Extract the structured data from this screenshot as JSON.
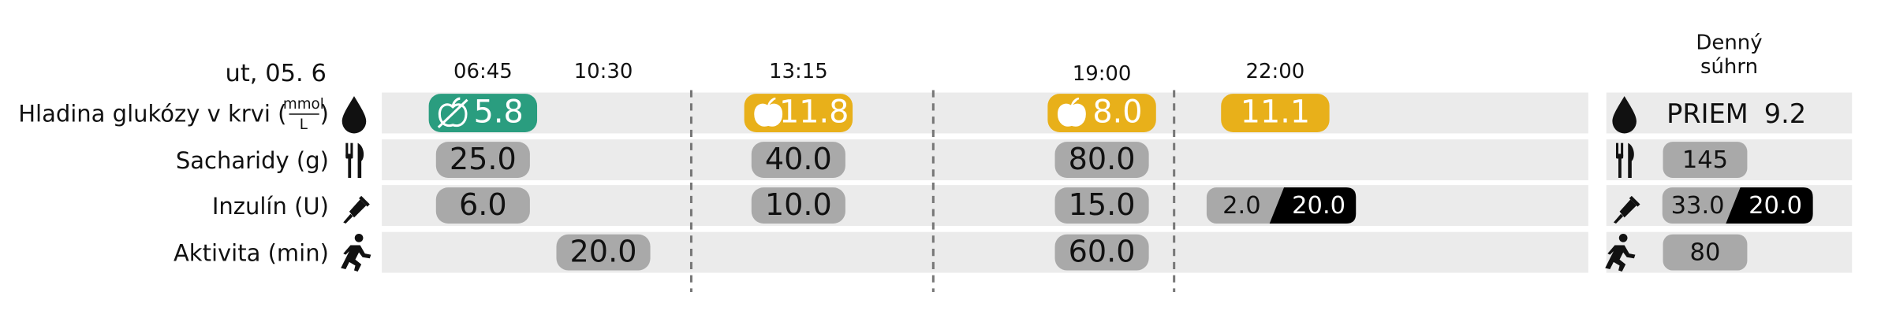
{
  "date": "ut, 05. 6",
  "times": [
    "06:45",
    "10:30",
    "13:15",
    "19:00",
    "22:00"
  ],
  "summary_title": [
    "Denný",
    "súhrn"
  ],
  "rows": [
    {
      "label": "Hladina glukózy v krvi (",
      "unit_numerator": "mmol",
      "unit_denominator": "L",
      "label_end": ")",
      "cells": [
        {
          "value": "5.8",
          "color": "#2a9d7f",
          "marker": "apple-crossed"
        },
        null,
        {
          "value": "11.8",
          "color": "#e8b01a",
          "marker": "apple"
        },
        {
          "value": "8.0",
          "color": "#e8b01a",
          "marker": "apple"
        },
        {
          "value": "11.1",
          "color": "#e8b01a",
          "marker": null
        }
      ]
    },
    {
      "label": "Sacharidy (g)",
      "cells": [
        {
          "value": "25.0"
        },
        null,
        {
          "value": "40.0"
        },
        {
          "value": "80.0"
        },
        null
      ]
    },
    {
      "label": "Inzulín (U)",
      "cells": [
        {
          "value": "6.0"
        },
        null,
        {
          "value": "10.0"
        },
        {
          "value": "15.0"
        },
        {
          "basal": "2.0",
          "bolus": "20.0"
        }
      ]
    },
    {
      "label": "Aktivita (min)",
      "cells": [
        null,
        {
          "value": "20.0"
        },
        null,
        {
          "value": "60.0"
        },
        null
      ]
    }
  ],
  "summary": {
    "average_label": "PRIEM",
    "average": "9.2",
    "carbs": "145",
    "insulin_basal": "33.0",
    "insulin_bolus": "20.0",
    "activity": "80"
  }
}
